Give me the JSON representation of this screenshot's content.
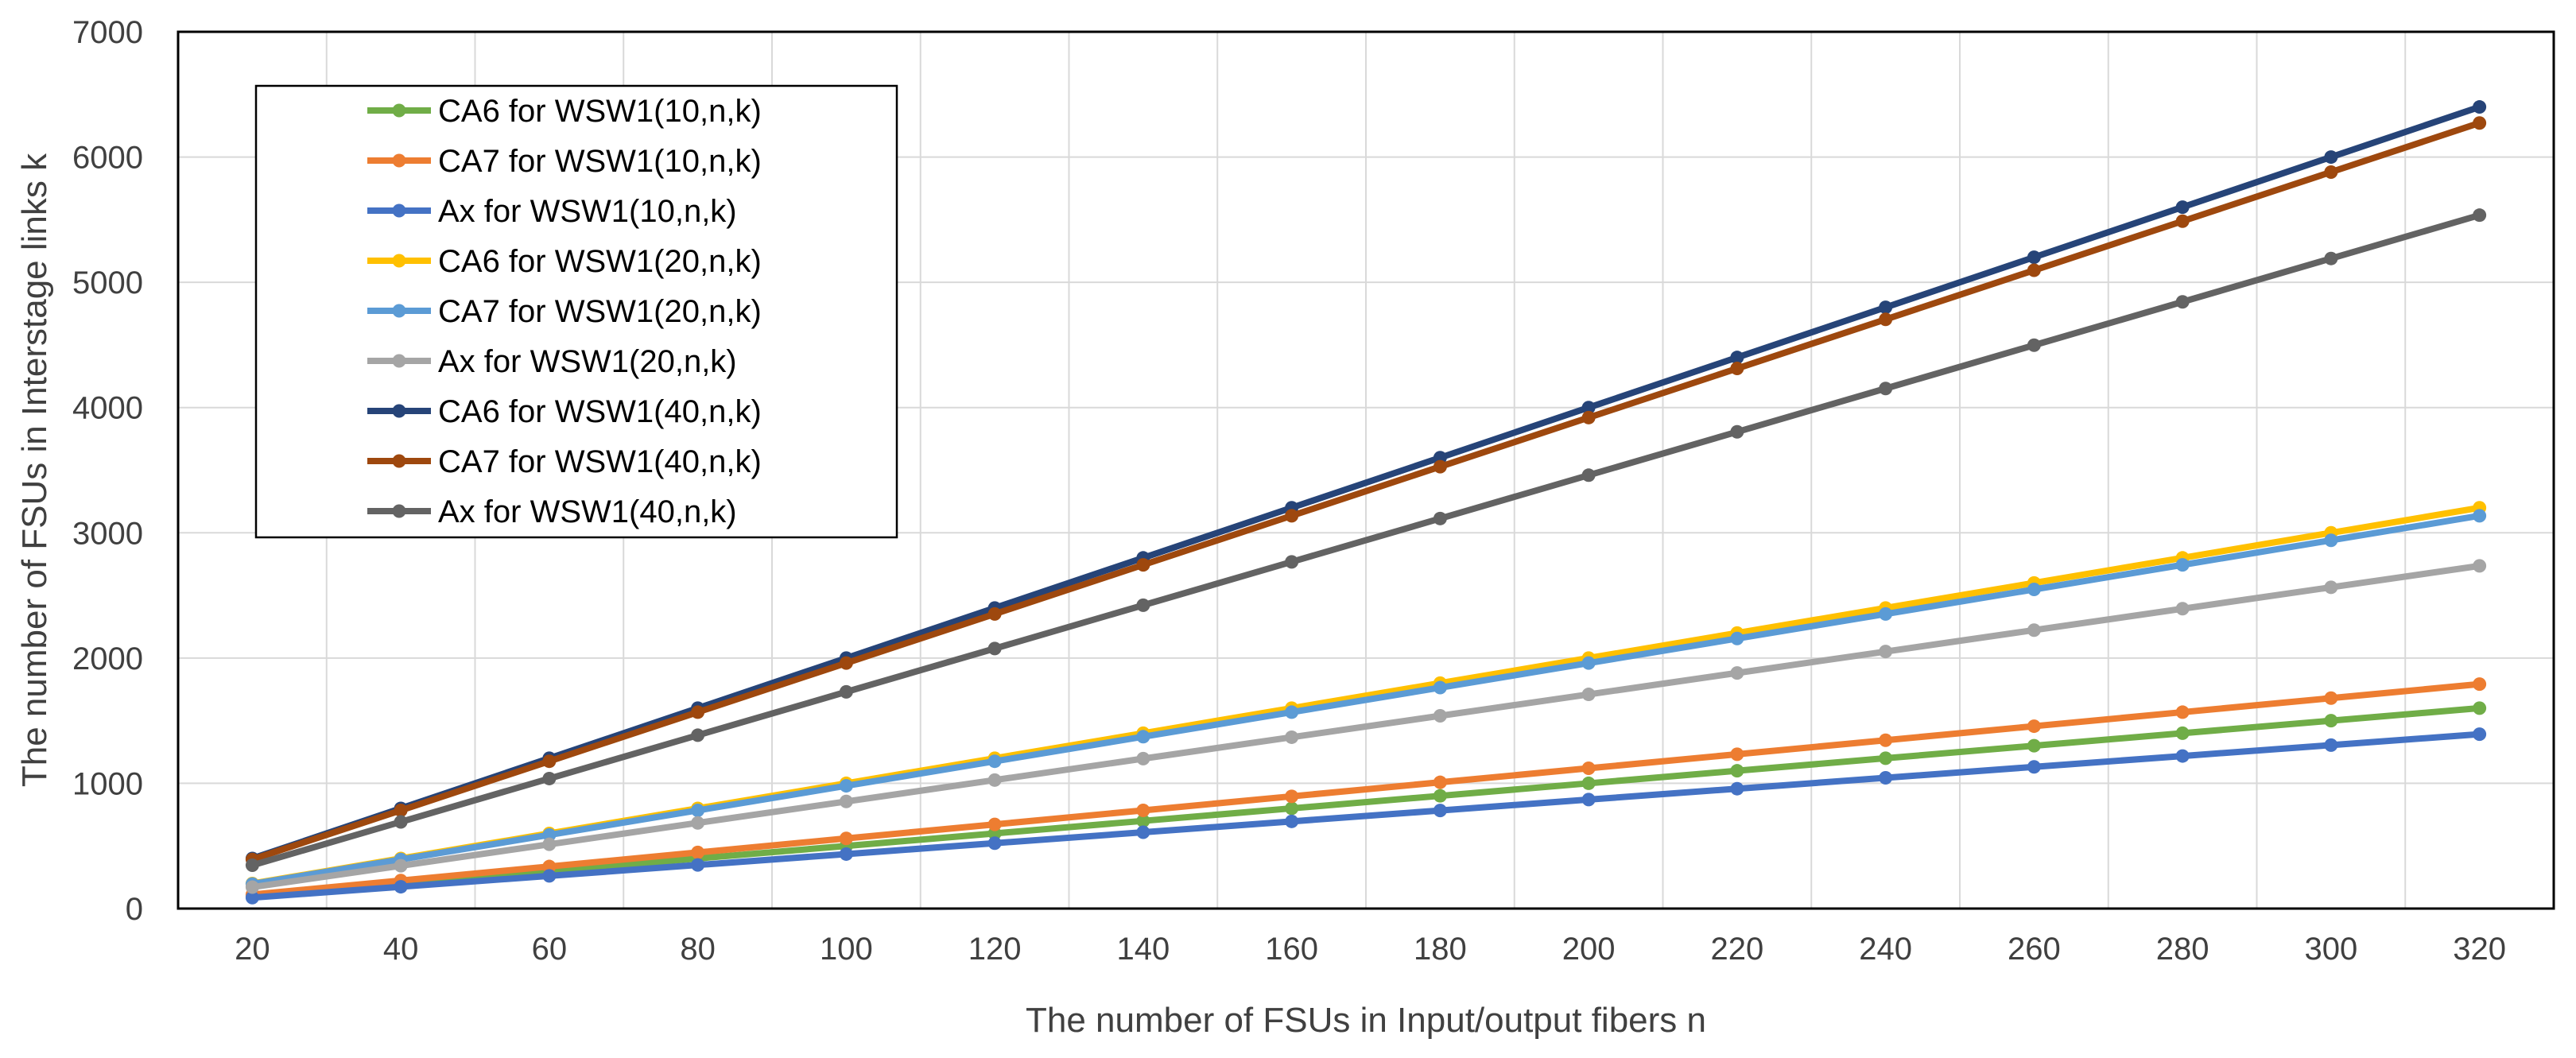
{
  "chart_data": {
    "type": "line",
    "title": "",
    "xlabel": "The number of FSUs in Input/output fibers n",
    "ylabel": "The number of FSUs in Interstage links k",
    "x": [
      20,
      40,
      60,
      80,
      100,
      120,
      140,
      160,
      180,
      200,
      220,
      240,
      260,
      280,
      300,
      320
    ],
    "x_tick_labels": [
      "20",
      "40",
      "60",
      "80",
      "100",
      "120",
      "140",
      "160",
      "180",
      "200",
      "220",
      "240",
      "260",
      "280",
      "300",
      "320"
    ],
    "ylim": [
      0,
      7000
    ],
    "y_ticks": [
      0,
      1000,
      2000,
      3000,
      4000,
      5000,
      6000,
      7000
    ],
    "y_tick_labels": [
      "0",
      "1000",
      "2000",
      "3000",
      "4000",
      "5000",
      "6000",
      "7000"
    ],
    "grid": true,
    "legend_position": "top-left",
    "series": [
      {
        "name": "CA6 for WSW1(10,n,k)",
        "color": "#70AD47",
        "values": [
          100,
          200,
          300,
          400,
          500,
          600,
          700,
          800,
          900,
          1000,
          1100,
          1200,
          1300,
          1400,
          1500,
          1600
        ]
      },
      {
        "name": "CA7 for WSW1(10,n,k)",
        "color": "#ED7D31",
        "values": [
          112,
          224,
          336,
          448,
          560,
          672,
          784,
          896,
          1008,
          1120,
          1232,
          1344,
          1456,
          1568,
          1680,
          1792
        ]
      },
      {
        "name": "Ax for WSW1(10,n,k)",
        "color": "#4472C4",
        "values": [
          87,
          174,
          261,
          348,
          435,
          522,
          609,
          696,
          783,
          870,
          957,
          1044,
          1131,
          1218,
          1305,
          1392
        ]
      },
      {
        "name": "CA6 for WSW1(20,n,k)",
        "color": "#FFC000",
        "values": [
          200,
          400,
          600,
          800,
          1000,
          1200,
          1400,
          1600,
          1800,
          2000,
          2200,
          2400,
          2600,
          2800,
          3000,
          3200
        ]
      },
      {
        "name": "CA7 for WSW1(20,n,k)",
        "color": "#5B9BD5",
        "values": [
          196,
          392,
          588,
          784,
          980,
          1176,
          1372,
          1568,
          1764,
          1960,
          2156,
          2352,
          2548,
          2744,
          2940,
          3136
        ]
      },
      {
        "name": "Ax for WSW1(20,n,k)",
        "color": "#A5A5A5",
        "values": [
          171,
          342,
          513,
          684,
          855,
          1026,
          1197,
          1368,
          1539,
          1710,
          1881,
          2052,
          2223,
          2394,
          2565,
          2736
        ]
      },
      {
        "name": "CA6 for WSW1(40,n,k)",
        "color": "#264478",
        "values": [
          400,
          800,
          1200,
          1600,
          2000,
          2400,
          2800,
          3200,
          3600,
          4000,
          4400,
          4800,
          5200,
          5600,
          6000,
          6400
        ]
      },
      {
        "name": "CA7 for WSW1(40,n,k)",
        "color": "#9E480E",
        "values": [
          392,
          784,
          1176,
          1568,
          1960,
          2352,
          2744,
          3136,
          3528,
          3920,
          4312,
          4704,
          5096,
          5488,
          5880,
          6272
        ]
      },
      {
        "name": "Ax for WSW1(40,n,k)",
        "color": "#636363",
        "values": [
          346,
          692,
          1038,
          1384,
          1730,
          2076,
          2422,
          2768,
          3114,
          3460,
          3806,
          4152,
          4498,
          4844,
          5190,
          5536
        ]
      }
    ]
  }
}
